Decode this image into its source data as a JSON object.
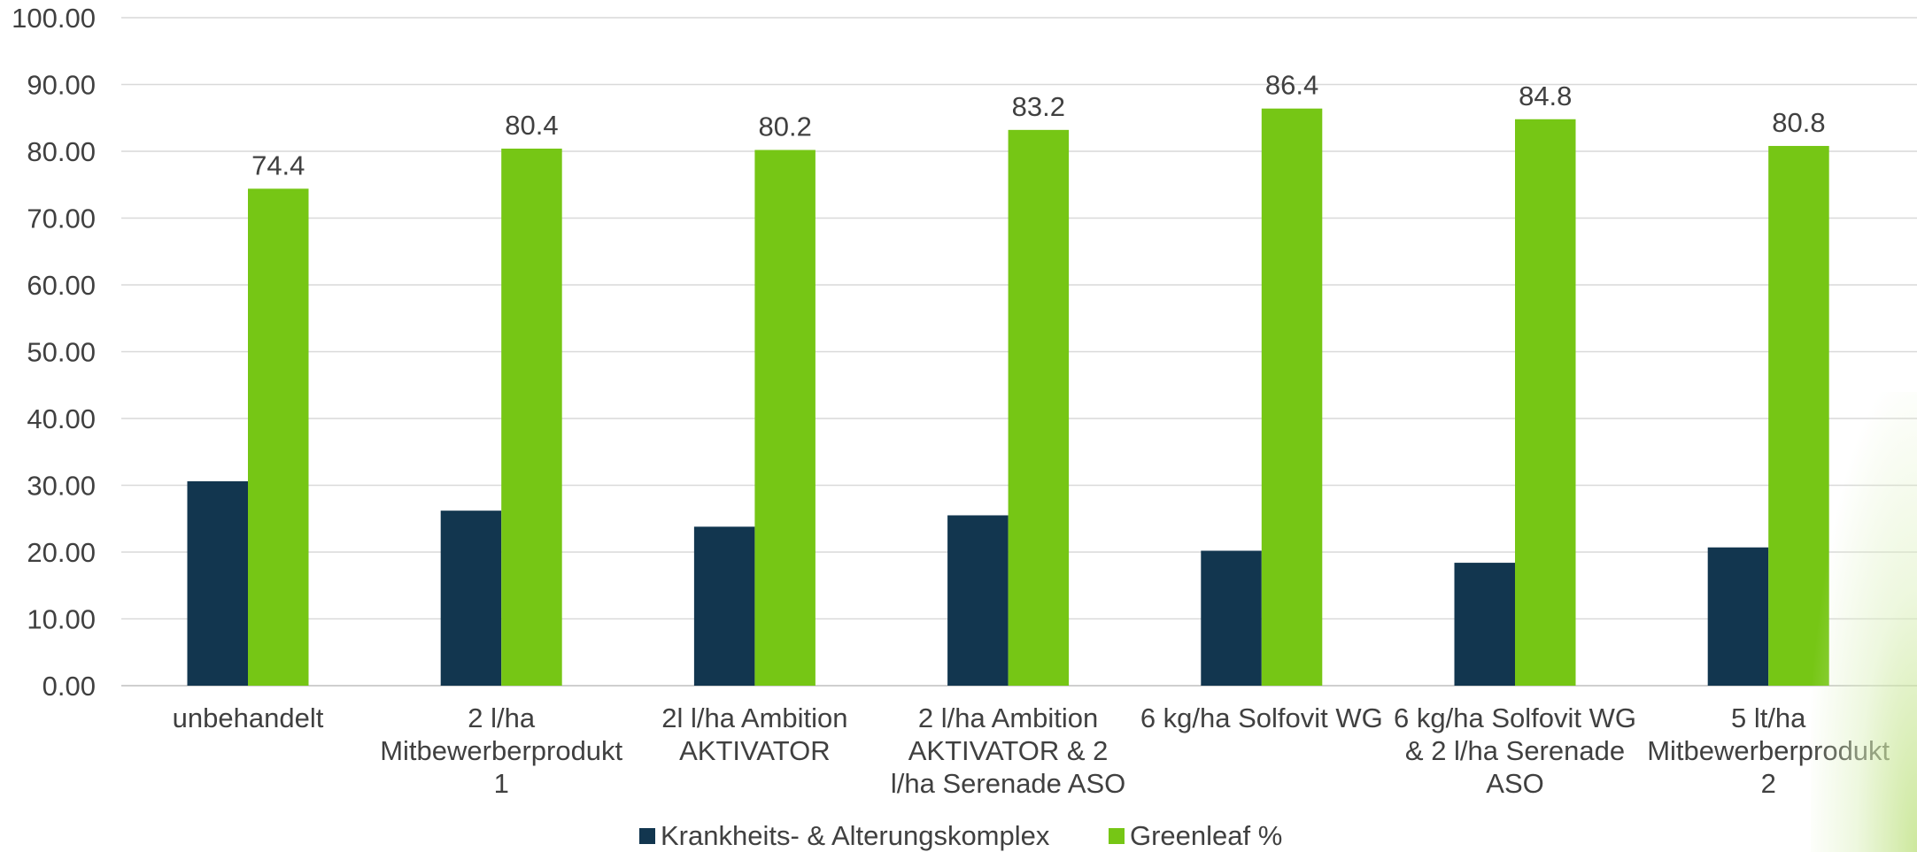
{
  "chart_data": {
    "type": "bar",
    "title": "",
    "xlabel": "",
    "ylabel": "",
    "ylim": [
      0,
      100
    ],
    "yticks": [
      "0.00",
      "10.00",
      "20.00",
      "30.00",
      "40.00",
      "50.00",
      "60.00",
      "70.00",
      "80.00",
      "90.00",
      "100.00"
    ],
    "grid": true,
    "legend_position": "bottom",
    "categories": [
      [
        "unbehandelt"
      ],
      [
        "2 l/ha",
        "Mitbewerberprodukt",
        "1"
      ],
      [
        "2l l/ha Ambition",
        "AKTIVATOR"
      ],
      [
        "2 l/ha Ambition",
        "AKTIVATOR & 2",
        "l/ha Serenade ASO"
      ],
      [
        "6 kg/ha Solfovit WG"
      ],
      [
        "6 kg/ha Solfovit WG",
        "& 2 l/ha Serenade",
        "ASO"
      ],
      [
        "5 lt/ha",
        "Mitbewerberprodukt",
        "2"
      ]
    ],
    "series": [
      {
        "name": "Krankheits- & Alterungskomplex",
        "color": "#12364f",
        "values": [
          30.6,
          26.2,
          23.8,
          25.5,
          20.2,
          18.4,
          20.7
        ],
        "data_labels": null
      },
      {
        "name": "Greenleaf %",
        "color": "#76c615",
        "values": [
          74.4,
          80.4,
          80.2,
          83.2,
          86.4,
          84.8,
          80.8
        ],
        "data_labels": [
          "74.4",
          "80.4",
          "80.2",
          "83.2",
          "86.4",
          "84.8",
          "80.8"
        ]
      }
    ]
  }
}
